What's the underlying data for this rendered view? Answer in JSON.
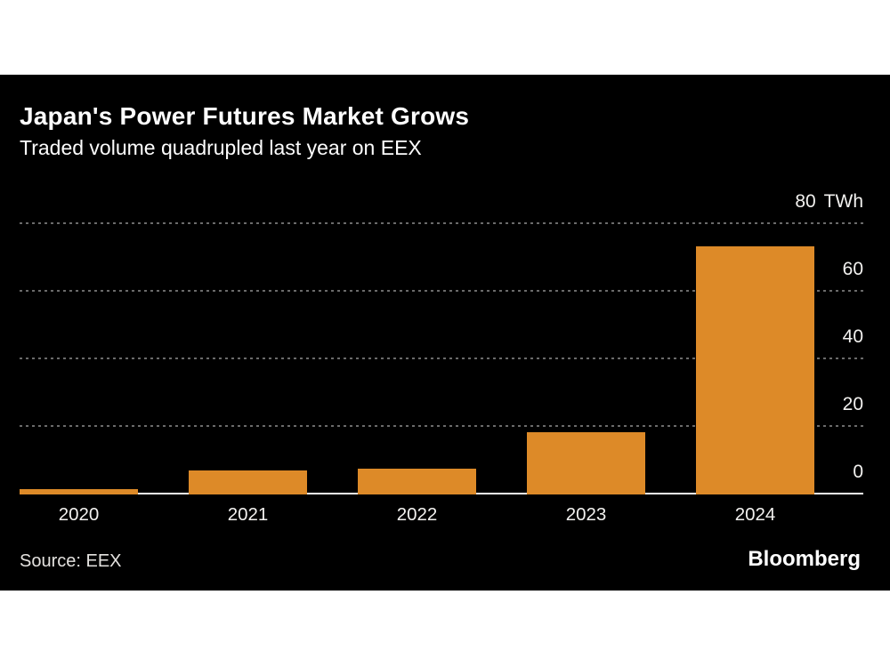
{
  "header": {
    "title": "Japan's Power Futures Market Grows",
    "subtitle": "Traded volume quadrupled last year on EEX"
  },
  "chart_data": {
    "type": "bar",
    "categories": [
      "2020",
      "2021",
      "2022",
      "2023",
      "2024"
    ],
    "values": [
      1,
      6.5,
      7,
      18,
      73
    ],
    "title": "Japan's Power Futures Market Grows",
    "subtitle": "Traded volume quadrupled last year on EEX",
    "xlabel": "",
    "ylabel": "TWh",
    "unit": "TWh",
    "ylim": [
      0,
      80
    ],
    "y_ticks": [
      0,
      20,
      40,
      60,
      80
    ],
    "grid": "horizontal-dotted",
    "tick_label_position": "right-above-gridline",
    "legend": "none",
    "bar_color": "#DD8A28"
  },
  "footer": {
    "source": "Source: EEX",
    "brand": "Bloomberg"
  },
  "colors": {
    "page_background": "#FFFFFF",
    "panel_background": "#000000",
    "bar": "#DD8A28",
    "title_text": "#FFFFFF",
    "tick_text": "#F2F1EF",
    "gridline": "#6B6B6B",
    "baseline": "#F7F7F7",
    "source_text": "#E4E2DF"
  }
}
